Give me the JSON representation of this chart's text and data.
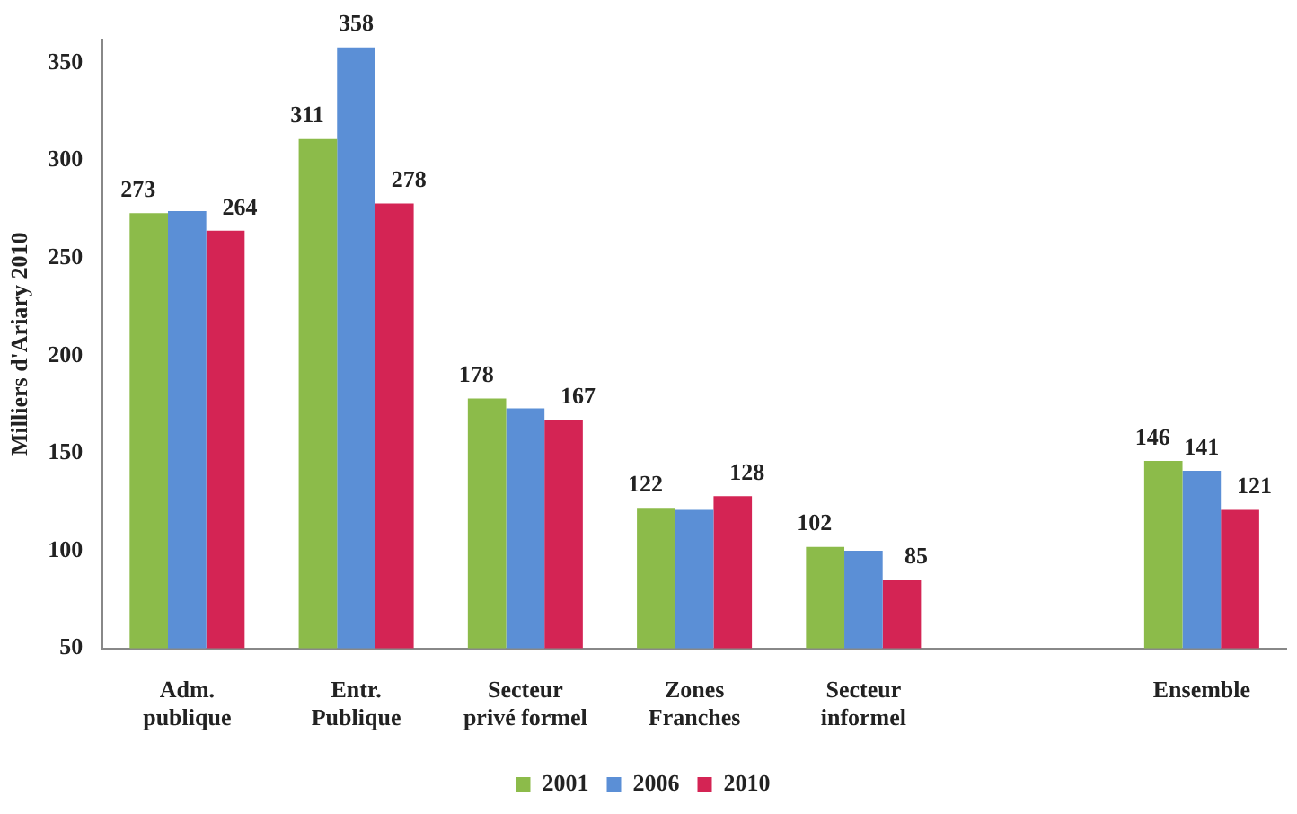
{
  "chart_data": {
    "type": "bar",
    "ylabel": "Milliers d'Ariary 2010",
    "categories": [
      "Adm. publique",
      "Entr. Publique",
      "Secteur privé formel",
      "Zones Franches",
      "Secteur informel",
      null,
      "Ensemble"
    ],
    "series": [
      {
        "name": "2001",
        "color": "#8cbb4a",
        "values": [
          273,
          311,
          178,
          122,
          102,
          null,
          146
        ],
        "value_labels": [
          "273",
          "311",
          "178",
          "122",
          "102",
          null,
          "146"
        ]
      },
      {
        "name": "2006",
        "color": "#5b8fd6",
        "values": [
          274,
          358,
          173,
          121,
          100,
          null,
          141
        ],
        "value_labels": [
          null,
          "358",
          null,
          null,
          null,
          null,
          "141"
        ]
      },
      {
        "name": "2010",
        "color": "#d42454",
        "values": [
          264,
          278,
          167,
          128,
          85,
          null,
          121
        ],
        "value_labels": [
          "264",
          "278",
          "167",
          "128",
          "85",
          null,
          "121"
        ]
      }
    ],
    "ylim": [
      50,
      362
    ],
    "yticks": [
      50,
      100,
      150,
      200,
      250,
      300,
      350
    ],
    "grid": false,
    "legend": "bottom"
  }
}
